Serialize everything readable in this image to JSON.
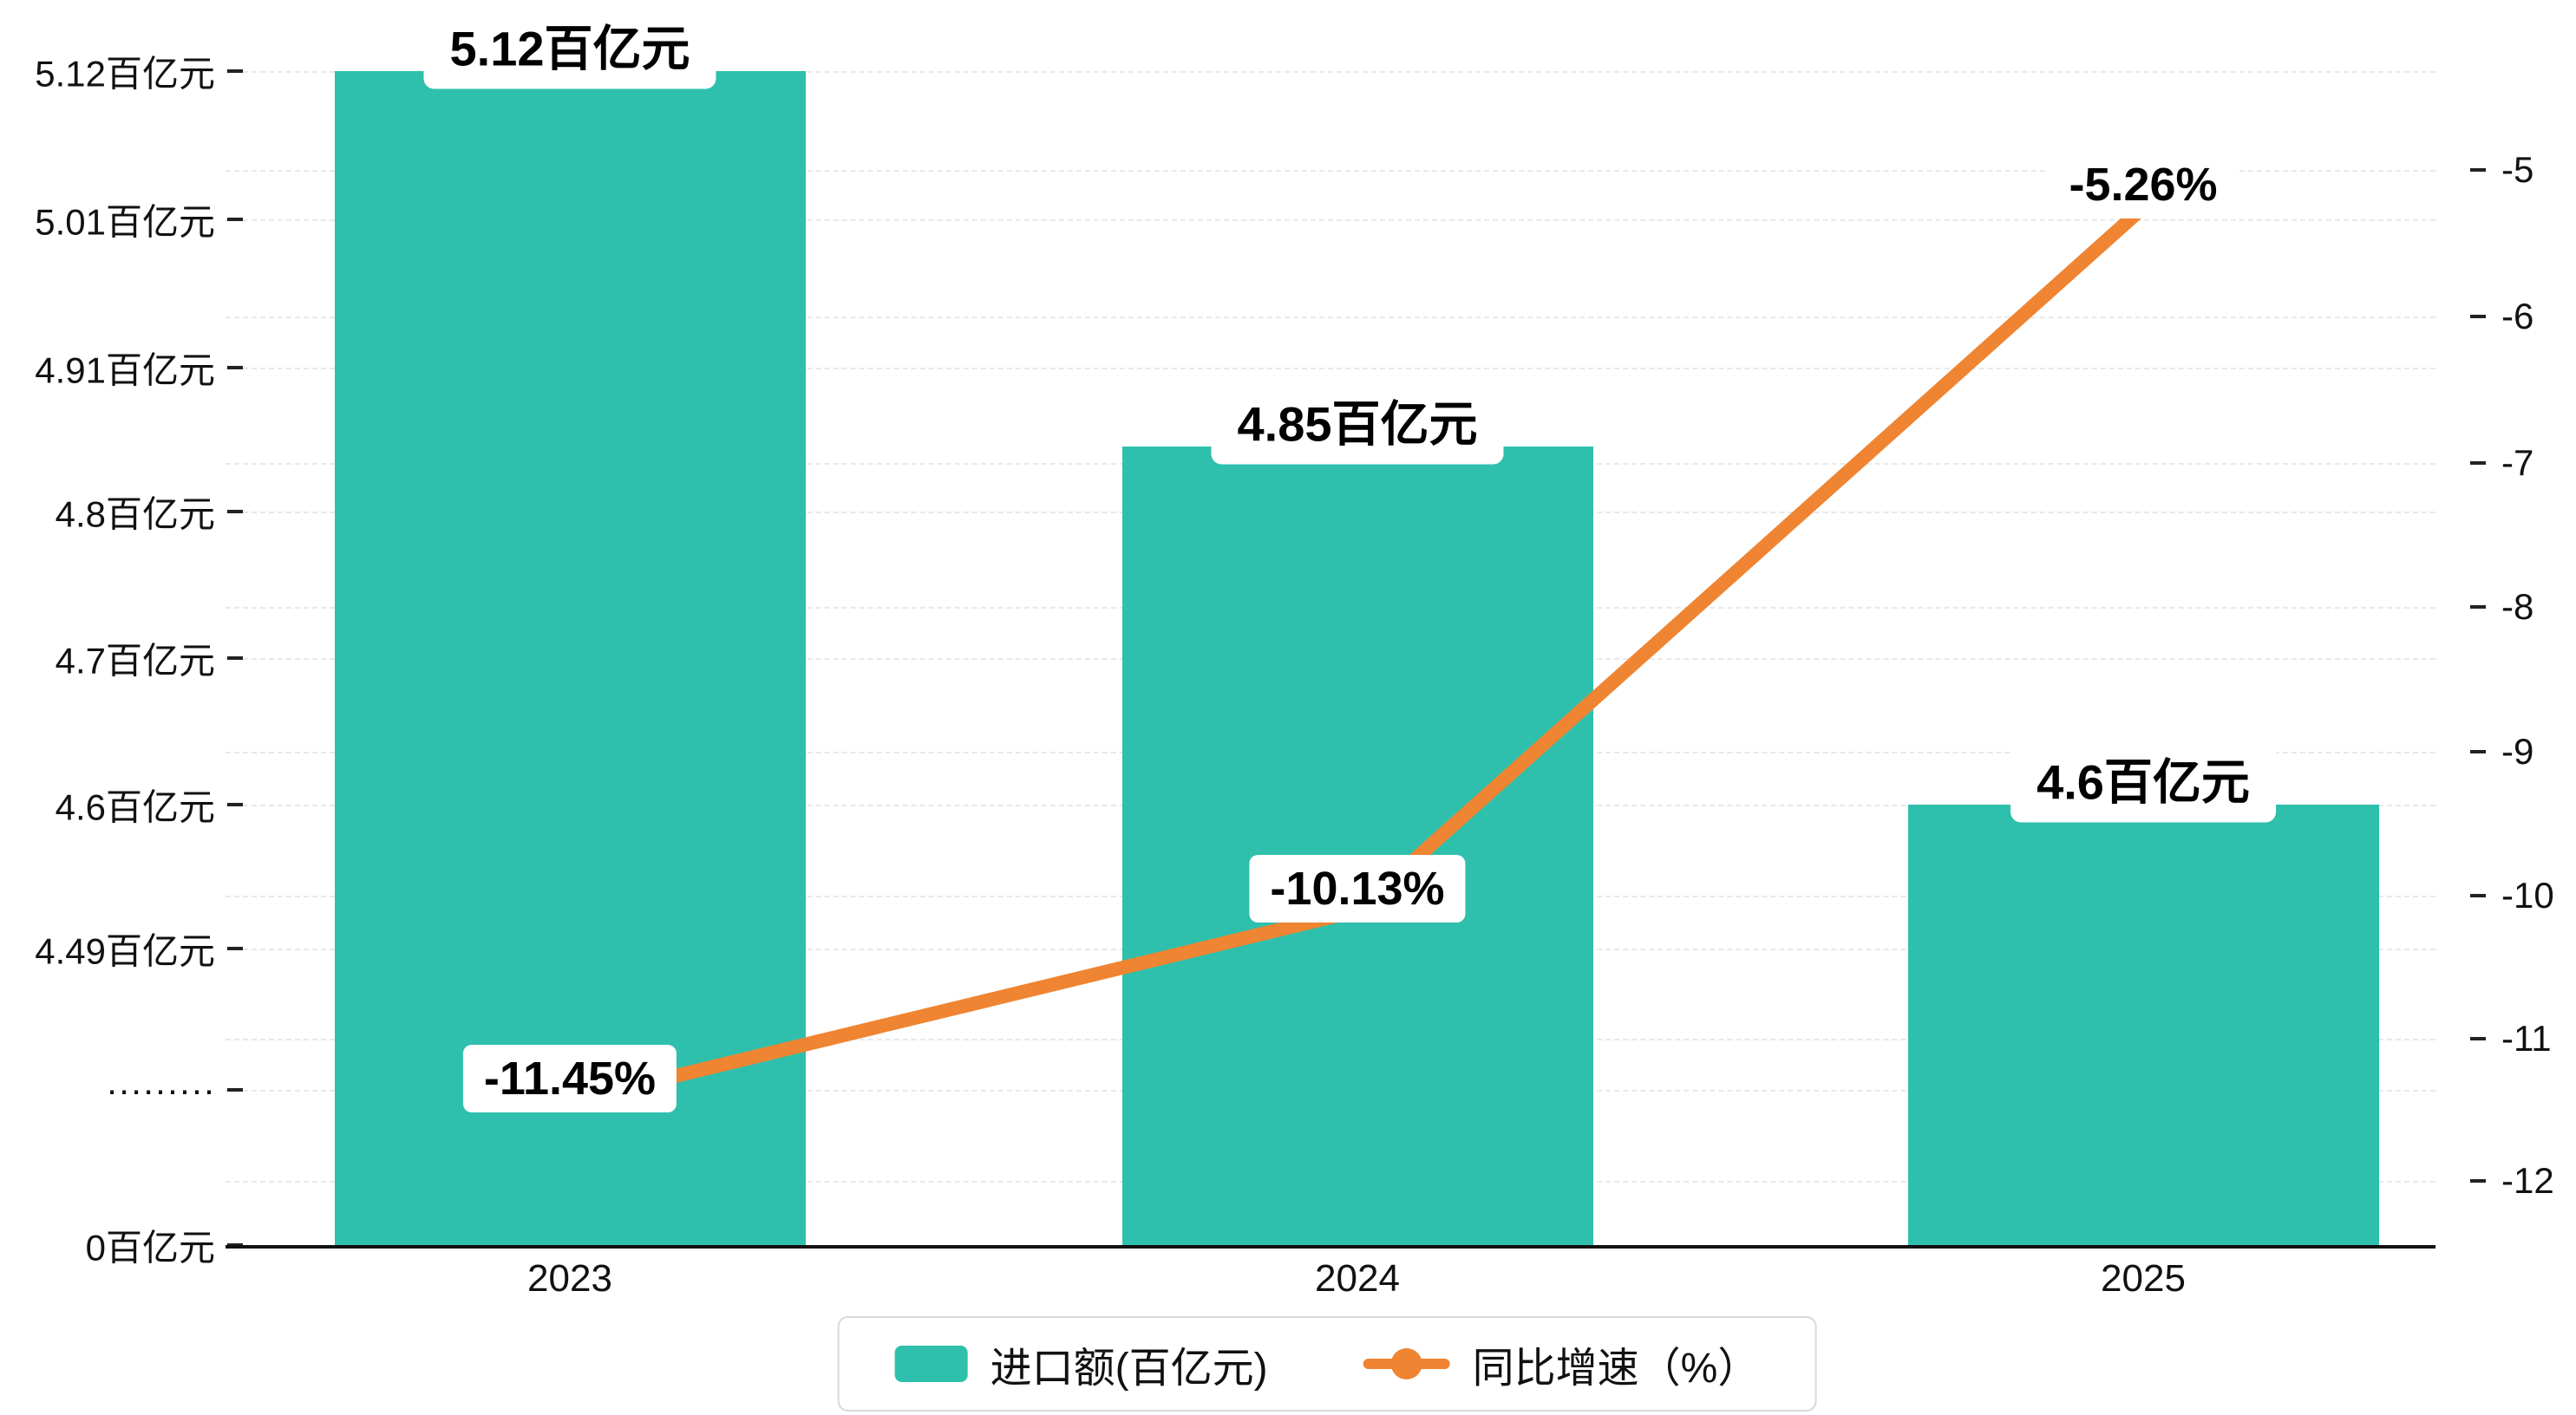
{
  "chart_data": {
    "type": "bar+line",
    "categories": [
      "2023",
      "2024",
      "2025"
    ],
    "series": [
      {
        "name": "进口额(百亿元)",
        "type": "bar",
        "axis": "left",
        "values": [
          5.12,
          4.85,
          4.6
        ],
        "labels": [
          "5.12百亿元",
          "4.85百亿元",
          "4.6百亿元"
        ],
        "color": "#2EC0AC"
      },
      {
        "name": "同比增速（%）",
        "type": "line",
        "axis": "right",
        "values": [
          -11.45,
          -10.13,
          -5.26
        ],
        "labels": [
          "-11.45%",
          "-10.13%",
          "-5.26%"
        ],
        "color": "#EF8432"
      }
    ],
    "left_axis": {
      "ticks": [
        {
          "label": "5.12百亿元",
          "value": 5.12
        },
        {
          "label": "5.01百亿元",
          "value": 5.01
        },
        {
          "label": "4.91百亿元",
          "value": 4.91
        },
        {
          "label": "4.8百亿元",
          "value": 4.8
        },
        {
          "label": "4.7百亿元",
          "value": 4.7
        },
        {
          "label": "4.6百亿元",
          "value": 4.6
        },
        {
          "label": "4.49百亿元",
          "value": 4.49
        },
        {
          "label": "·········",
          "value": null
        },
        {
          "label": "0百亿元",
          "value": 0
        }
      ]
    },
    "right_axis": {
      "ticks": [
        {
          "label": "-5",
          "value": -5
        },
        {
          "label": "-6",
          "value": -6
        },
        {
          "label": "-7",
          "value": -7
        },
        {
          "label": "-8",
          "value": -8
        },
        {
          "label": "-9",
          "value": -9
        },
        {
          "label": "-10",
          "value": -10
        },
        {
          "label": "-11",
          "value": -11
        },
        {
          "label": "-12",
          "value": -12
        }
      ]
    },
    "legend": {
      "position": "bottom-center"
    },
    "grid": true,
    "title": ""
  }
}
